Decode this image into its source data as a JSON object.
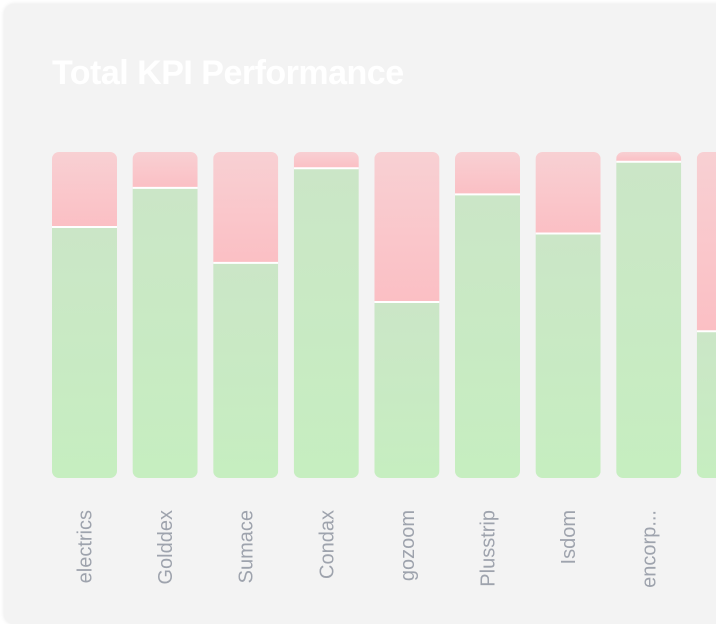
{
  "chart_data": {
    "type": "bar",
    "stacked": true,
    "title": "Total KPI Performance",
    "categories": [
      "electrics",
      "Golddex",
      "Sumace",
      "Condax",
      "gozoom",
      "Plusstrip",
      "Isdom",
      "encorp...",
      ""
    ],
    "series": [
      {
        "values": [
          77,
          89,
          66,
          95,
          54,
          87,
          75,
          97,
          45
        ],
        "color": "#c6eac2"
      },
      {
        "values": [
          23,
          11,
          34,
          5,
          46,
          13,
          25,
          3,
          55
        ],
        "color": "#f9c4c7"
      }
    ],
    "ylim": [
      0,
      100
    ],
    "grid": false,
    "legend": "none"
  }
}
